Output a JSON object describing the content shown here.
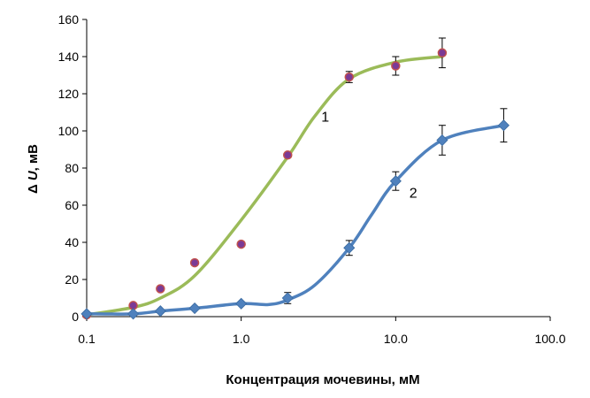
{
  "chart_data": {
    "type": "scatter",
    "xscale": "log",
    "xlim": [
      0.1,
      100.0
    ],
    "ylim": [
      0,
      160
    ],
    "xticks": [
      "0.1",
      "1.0",
      "10.0",
      "100.0"
    ],
    "yticks": [
      "0",
      "20",
      "40",
      "60",
      "80",
      "100",
      "120",
      "140",
      "160"
    ],
    "xlabel": "Концентрация мочевины, мМ",
    "ylabel_prefix": "Δ",
    "ylabel_symbol": "U",
    "ylabel_suffix": ", мВ",
    "grid": false,
    "series": [
      {
        "name": "1",
        "marker": "circle",
        "marker_color": "#7B3A96",
        "marker_edge": "#C0504D",
        "line_color": "#9BBB59",
        "points": [
          {
            "x": 0.1,
            "y": 1
          },
          {
            "x": 0.2,
            "y": 6
          },
          {
            "x": 0.3,
            "y": 15
          },
          {
            "x": 0.5,
            "y": 29
          },
          {
            "x": 1.0,
            "y": 39
          },
          {
            "x": 2.0,
            "y": 87
          },
          {
            "x": 5.0,
            "y": 129,
            "err": 3
          },
          {
            "x": 10.0,
            "y": 135,
            "err": 5
          },
          {
            "x": 20.0,
            "y": 142,
            "err": 8
          }
        ],
        "fit": [
          {
            "x": 0.1,
            "y": 1
          },
          {
            "x": 0.2,
            "y": 5
          },
          {
            "x": 0.3,
            "y": 10
          },
          {
            "x": 0.5,
            "y": 22
          },
          {
            "x": 1.0,
            "y": 52
          },
          {
            "x": 2.0,
            "y": 86
          },
          {
            "x": 3.0,
            "y": 108
          },
          {
            "x": 5.0,
            "y": 128
          },
          {
            "x": 10.0,
            "y": 137
          },
          {
            "x": 20.0,
            "y": 140
          }
        ]
      },
      {
        "name": "2",
        "marker": "diamond",
        "marker_color": "#4F81BD",
        "line_color": "#4F81BD",
        "points": [
          {
            "x": 0.1,
            "y": 1.5
          },
          {
            "x": 0.2,
            "y": 1.5
          },
          {
            "x": 0.3,
            "y": 3
          },
          {
            "x": 0.5,
            "y": 4.5
          },
          {
            "x": 1.0,
            "y": 7
          },
          {
            "x": 2.0,
            "y": 10,
            "err": 3
          },
          {
            "x": 5.0,
            "y": 37,
            "err": 4
          },
          {
            "x": 10.0,
            "y": 73,
            "err": 5
          },
          {
            "x": 20.0,
            "y": 95,
            "err": 8
          },
          {
            "x": 50.0,
            "y": 103,
            "err": 9
          }
        ],
        "fit": [
          {
            "x": 0.1,
            "y": 1.5
          },
          {
            "x": 0.2,
            "y": 1.5
          },
          {
            "x": 0.3,
            "y": 3
          },
          {
            "x": 0.5,
            "y": 4.5
          },
          {
            "x": 1.0,
            "y": 7
          },
          {
            "x": 1.5,
            "y": 6.5
          },
          {
            "x": 2.0,
            "y": 9
          },
          {
            "x": 3.0,
            "y": 17
          },
          {
            "x": 5.0,
            "y": 37
          },
          {
            "x": 7.0,
            "y": 55
          },
          {
            "x": 10.0,
            "y": 73
          },
          {
            "x": 20.0,
            "y": 95
          },
          {
            "x": 50.0,
            "y": 103
          }
        ]
      }
    ],
    "curve_labels": [
      {
        "text": "1",
        "x": 3.5,
        "y": 105
      },
      {
        "text": "2",
        "x": 13.0,
        "y": 64
      }
    ]
  }
}
